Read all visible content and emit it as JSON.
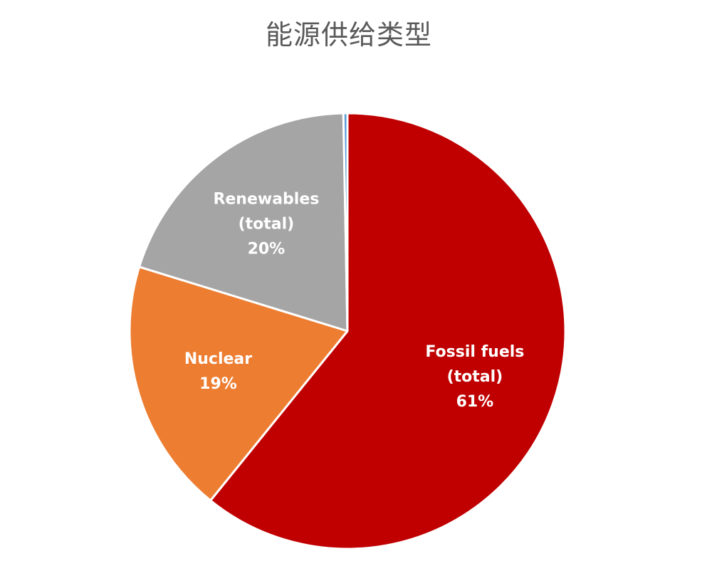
{
  "chart_data": {
    "type": "pie",
    "title": "能源供给类型",
    "slices": [
      {
        "label_lines": [
          "Fossil fuels",
          "(total)",
          "61%"
        ],
        "value": 61,
        "color": "#C00000"
      },
      {
        "label_lines": [
          "Nuclear",
          "19%"
        ],
        "value": 19,
        "color": "#ED7D31"
      },
      {
        "label_lines": [
          "Renewables",
          "(total)",
          "20%"
        ],
        "value": 20,
        "color": "#A5A5A5"
      },
      {
        "label_lines": [],
        "value": 0.3,
        "color": "#5B9BD5"
      }
    ],
    "start_angle_deg": 0,
    "direction": "clockwise",
    "legend": "none"
  }
}
